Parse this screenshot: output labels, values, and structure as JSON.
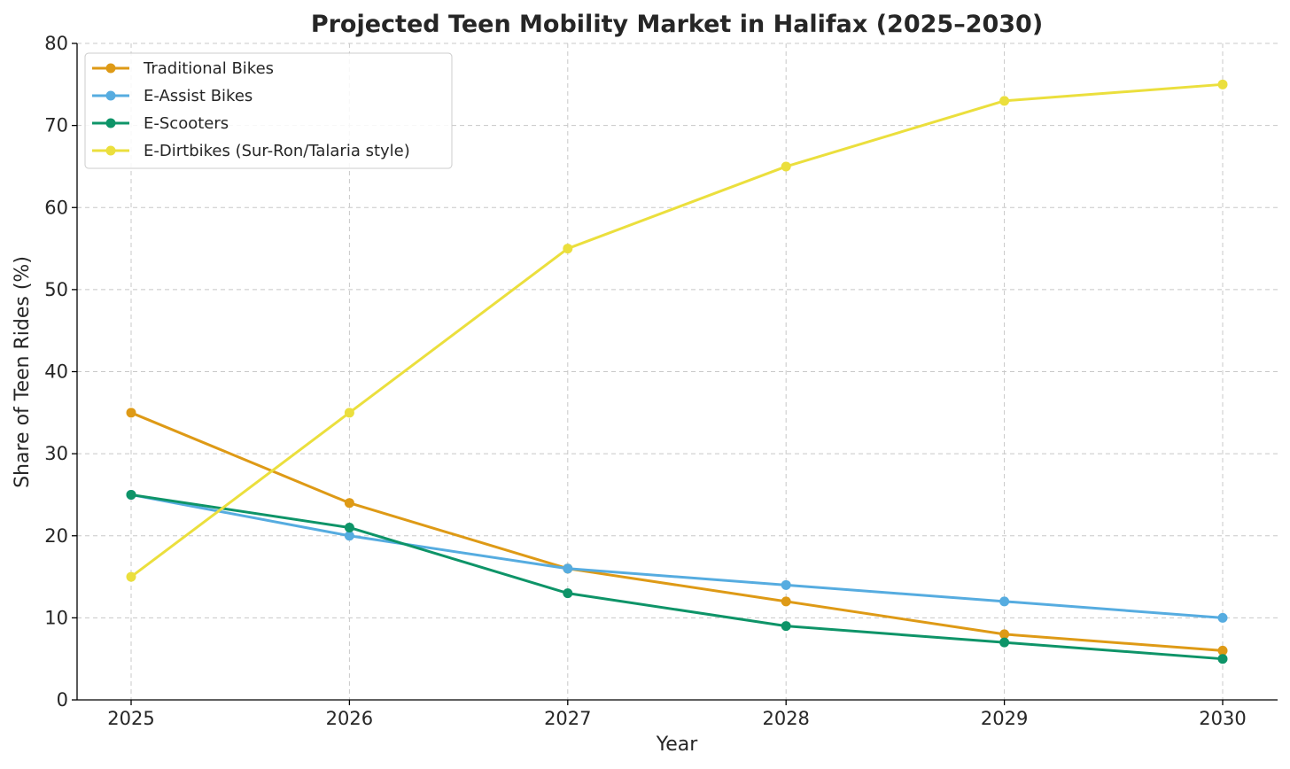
{
  "chart_data": {
    "type": "line",
    "title": "Projected Teen Mobility Market in Halifax (2025–2030)",
    "xlabel": "Year",
    "ylabel": "Share of Teen Rides (%)",
    "x": [
      2025,
      2026,
      2027,
      2028,
      2029,
      2030
    ],
    "x_tick_labels": [
      "2025",
      "2026",
      "2027",
      "2028",
      "2029",
      "2030"
    ],
    "ylim": [
      0,
      80
    ],
    "y_ticks": [
      0,
      10,
      20,
      30,
      40,
      50,
      60,
      70,
      80
    ],
    "y_tick_labels": [
      "0",
      "10",
      "20",
      "30",
      "40",
      "50",
      "60",
      "70",
      "80"
    ],
    "grid": true,
    "legend_position": "top-left",
    "series": [
      {
        "name": "Traditional Bikes",
        "color": "#de9a16",
        "values": [
          35,
          24,
          16,
          12,
          8,
          6
        ]
      },
      {
        "name": "E-Assist Bikes",
        "color": "#56ace0",
        "values": [
          25,
          20,
          16,
          14,
          12,
          10
        ]
      },
      {
        "name": "E-Scooters",
        "color": "#0e9468",
        "values": [
          25,
          21,
          13,
          9,
          7,
          5
        ]
      },
      {
        "name": "E-Dirtbikes (Sur-Ron/Talaria style)",
        "color": "#ebdf3d",
        "values": [
          15,
          35,
          55,
          65,
          73,
          75
        ]
      }
    ]
  }
}
